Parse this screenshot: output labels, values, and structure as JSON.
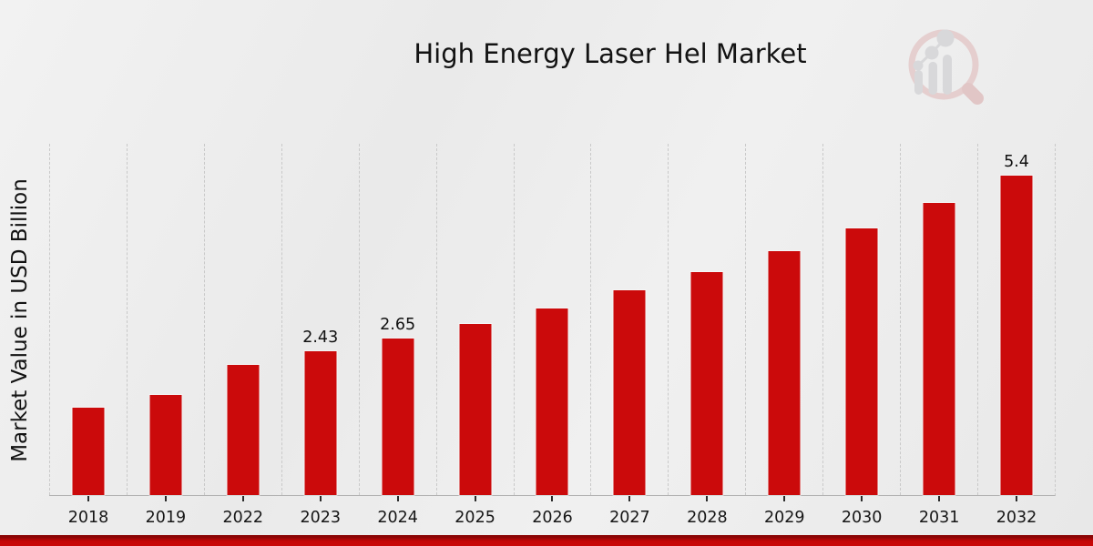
{
  "title": "High Energy Laser Hel Market",
  "y_axis_label": "Market Value in USD Billion",
  "logo": {
    "icon": "magnifier-bar-chart-watermark"
  },
  "colors": {
    "bar": "#cb0a0b",
    "footer_strip": "#c40707",
    "gridline": "#c9c9c9",
    "background": "#ececec"
  },
  "chart_data": {
    "type": "bar",
    "title": "High Energy Laser Hel Market",
    "ylabel": "Market Value in USD Billion",
    "xlabel": "",
    "categories": [
      "2018",
      "2019",
      "2022",
      "2023",
      "2024",
      "2025",
      "2026",
      "2027",
      "2028",
      "2029",
      "2030",
      "2031",
      "2032"
    ],
    "values": [
      1.48,
      1.7,
      2.2,
      2.43,
      2.65,
      2.9,
      3.16,
      3.46,
      3.78,
      4.13,
      4.52,
      4.94,
      5.4
    ],
    "bar_labels": [
      "",
      "",
      "",
      "2.43",
      "2.65",
      "",
      "",
      "",
      "",
      "",
      "",
      "",
      "5.4"
    ],
    "ylim": [
      0,
      5.96
    ],
    "grid": "vertical-dotted",
    "legend_position": "none",
    "bar_color": "#cb0a0b"
  }
}
